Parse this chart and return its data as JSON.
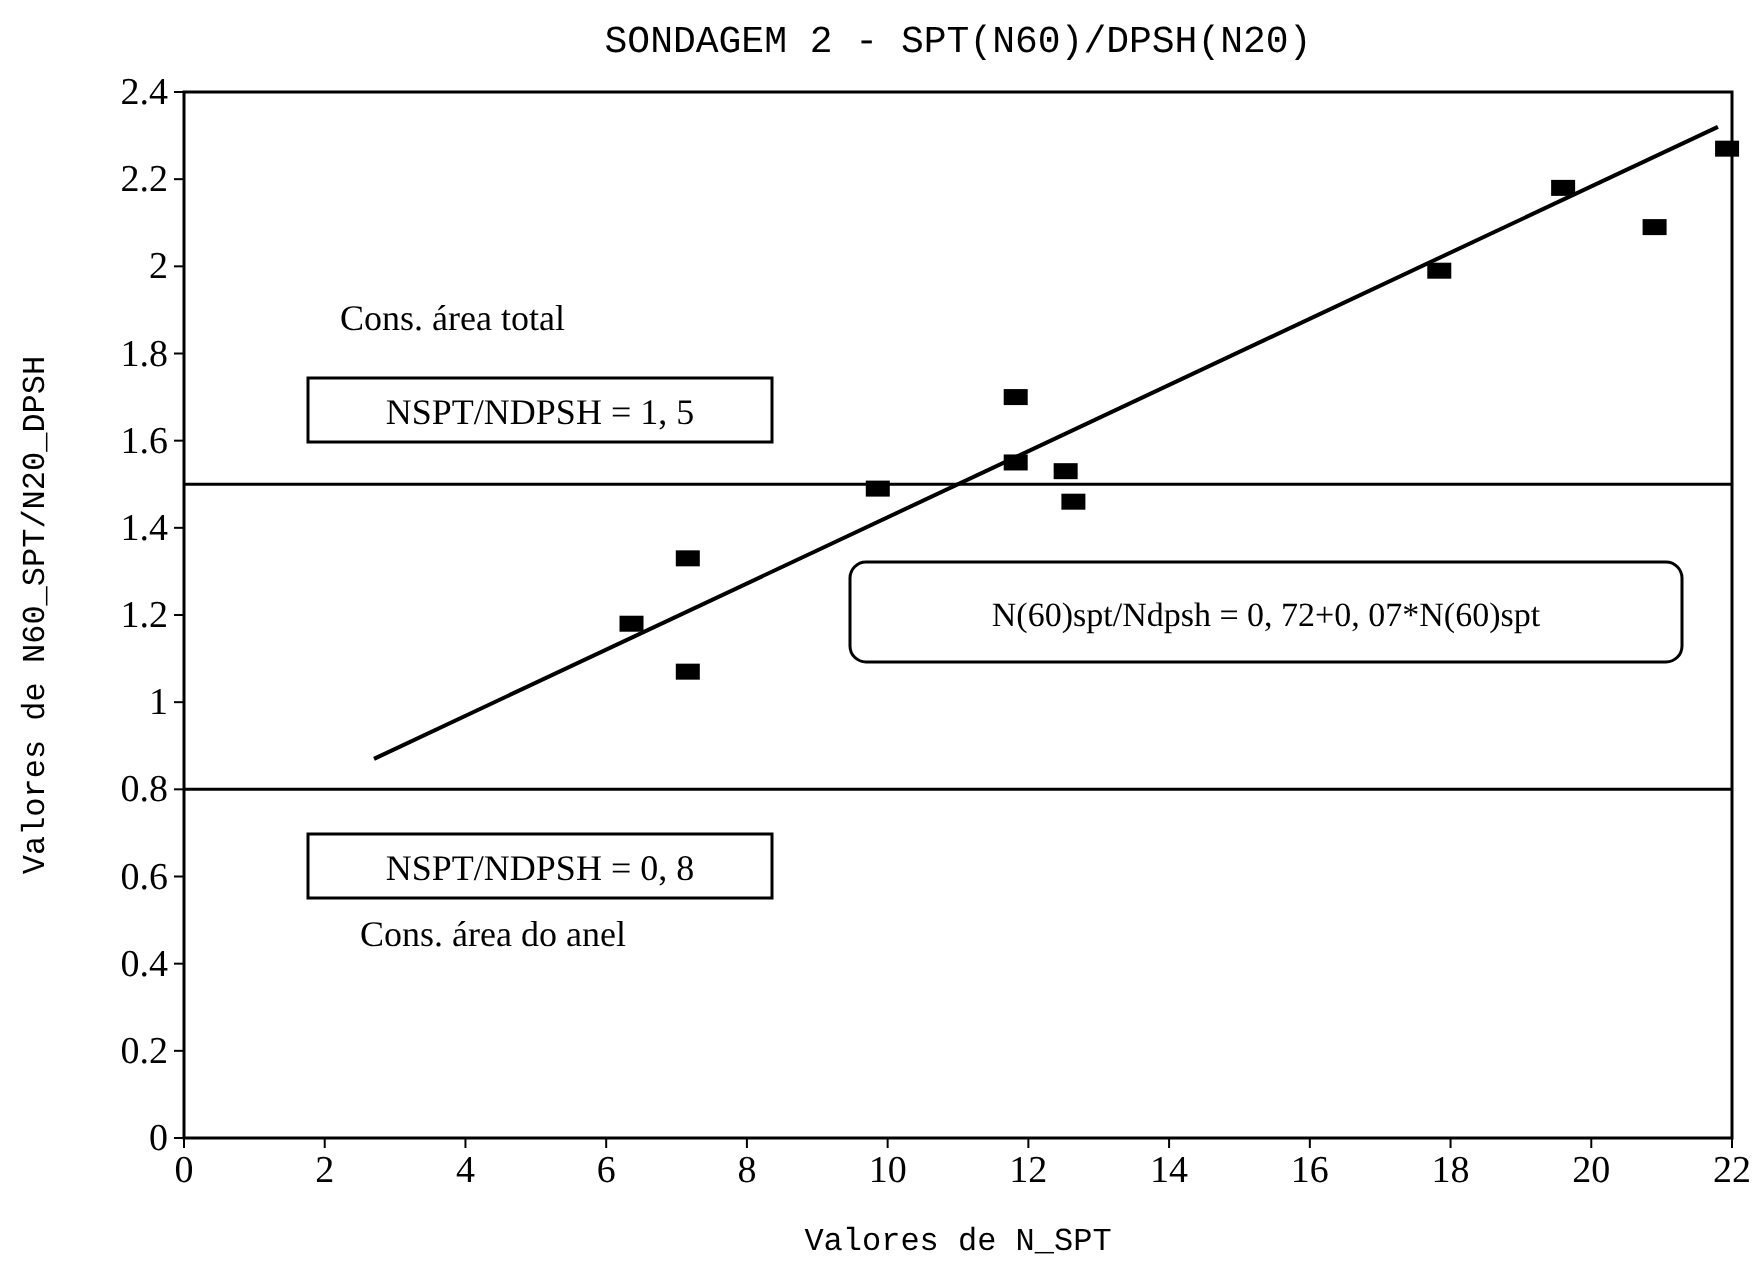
{
  "chart_data": {
    "type": "scatter",
    "title": "SONDAGEM 2 - SPT(N60)/DPSH(N20)",
    "xlabel": "Valores de N_SPT",
    "ylabel": "Valores de N60_SPT/N20_DPSH",
    "series": [
      {
        "color": "#000000",
        "marker": "square",
        "x": [
          6.36,
          7.16,
          7.16,
          9.86,
          11.82,
          11.82,
          12.53,
          12.64,
          17.84,
          19.6,
          20.9,
          21.93
        ],
        "values": [
          1.18,
          1.33,
          1.07,
          1.49,
          1.7,
          1.55,
          1.53,
          1.46,
          1.99,
          2.18,
          2.09,
          2.27
        ]
      },
      {
        "type": "line",
        "color": "#000000",
        "marker": "none",
        "line_style": "solid",
        "x": [
          2.7,
          21.8
        ],
        "values": [
          0.87,
          2.32
        ]
      }
    ],
    "ref_lines": [
      {
        "axis": "y",
        "value": 1.5,
        "color": "#000000"
      },
      {
        "axis": "y",
        "value": 0.8,
        "color": "#000000"
      }
    ],
    "annotations": [
      "Cons. área total",
      "NSPT/NDPSH = 1, 5",
      "NSPT/NDPSH = 0, 8",
      "Cons. área do anel",
      "N(60)spt/Ndpsh = 0, 72+0, 07*N(60)spt"
    ],
    "xlim": [
      0,
      22
    ],
    "xticks": [
      0,
      2,
      4,
      6,
      8,
      10,
      12,
      14,
      16,
      18,
      20,
      22
    ],
    "ylim": [
      0,
      2.4
    ],
    "yticks": [
      0,
      0.2,
      0.4,
      0.6,
      0.8,
      1,
      1.2,
      1.4,
      1.6,
      1.8,
      2,
      2.2,
      2.4
    ],
    "grid": false
  }
}
